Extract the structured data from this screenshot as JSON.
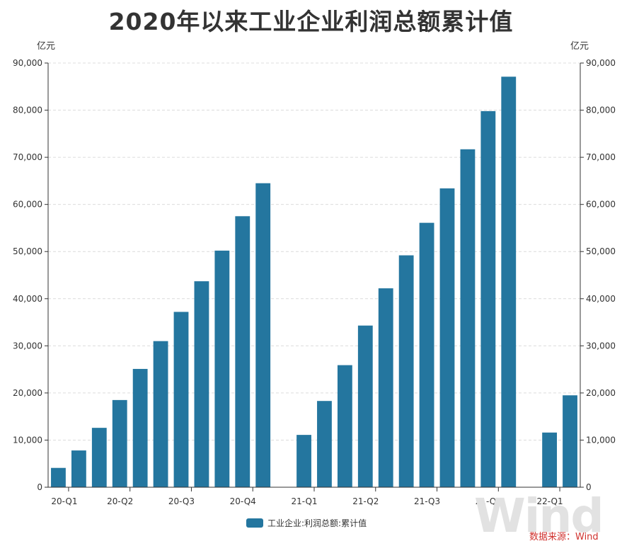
{
  "chart_data": {
    "type": "bar",
    "title": "2020年以来工业企业利润总额累计值",
    "ylabel_left": "亿元",
    "ylabel_right": "亿元",
    "ylim": [
      0,
      90000
    ],
    "yticks": [
      "0",
      "10,000",
      "20,000",
      "30,000",
      "40,000",
      "50,000",
      "60,000",
      "70,000",
      "80,000",
      "90,000"
    ],
    "xtick_labels": [
      "20-Q1",
      "20-Q2",
      "20-Q3",
      "20-Q4",
      "21-Q1",
      "21-Q2",
      "21-Q3",
      "21-Q4",
      "22-Q1"
    ],
    "grid": true,
    "legend_position": "bottom",
    "series": [
      {
        "name": "工业企业:利润总额:累计值",
        "color": "#24769f",
        "values": [
          4100,
          7800,
          12600,
          18500,
          25100,
          31000,
          37200,
          43700,
          50200,
          57500,
          64500,
          null,
          11100,
          18300,
          25900,
          34300,
          42200,
          49200,
          56100,
          63400,
          71700,
          79800,
          87100,
          null,
          11600,
          19500
        ]
      }
    ]
  },
  "source": "数据来源：Wind",
  "watermark": "Wind"
}
